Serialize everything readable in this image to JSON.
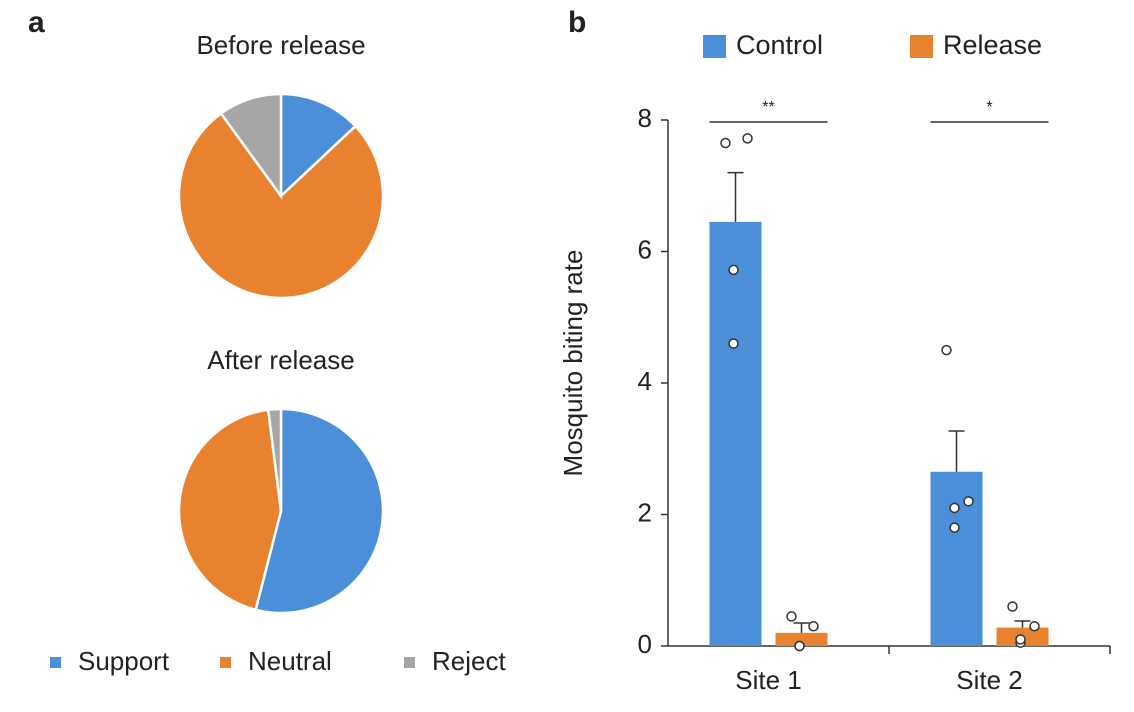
{
  "panel_labels": [
    "a",
    "b"
  ],
  "chart_data": [
    {
      "type": "pie",
      "title": "Before release",
      "categories": [
        "Support",
        "Neutral",
        "Reject"
      ],
      "values": [
        13,
        77,
        10
      ],
      "colors": [
        "#4a8fd8",
        "#e8822e",
        "#a6a6a6"
      ]
    },
    {
      "type": "pie",
      "title": "After release",
      "categories": [
        "Support",
        "Neutral",
        "Reject"
      ],
      "values": [
        54,
        44,
        2
      ],
      "colors": [
        "#4a8fd8",
        "#e8822e",
        "#a6a6a6"
      ]
    },
    {
      "type": "bar",
      "ylabel": "Mosquito biting rate",
      "categories": [
        "Site 1",
        "Site 2"
      ],
      "series": [
        {
          "name": "Control",
          "color": "#4a8fd8",
          "values": [
            6.45,
            2.65
          ],
          "errors": [
            0.75,
            0.62
          ],
          "points": [
            [
              7.65,
              7.72,
              5.72,
              4.6
            ],
            [
              4.5,
              2.2,
              2.1,
              1.8
            ]
          ]
        },
        {
          "name": "Release",
          "color": "#e8822e",
          "values": [
            0.2,
            0.28
          ],
          "errors": [
            0.15,
            0.1
          ],
          "points": [
            [
              0.45,
              0.3,
              0,
              0
            ],
            [
              0.6,
              0.3,
              0.05,
              0.1
            ]
          ]
        }
      ],
      "ylim": [
        0,
        8
      ],
      "yticks": [
        0,
        2,
        4,
        6,
        8
      ],
      "significance": [
        "**",
        "*"
      ]
    }
  ]
}
